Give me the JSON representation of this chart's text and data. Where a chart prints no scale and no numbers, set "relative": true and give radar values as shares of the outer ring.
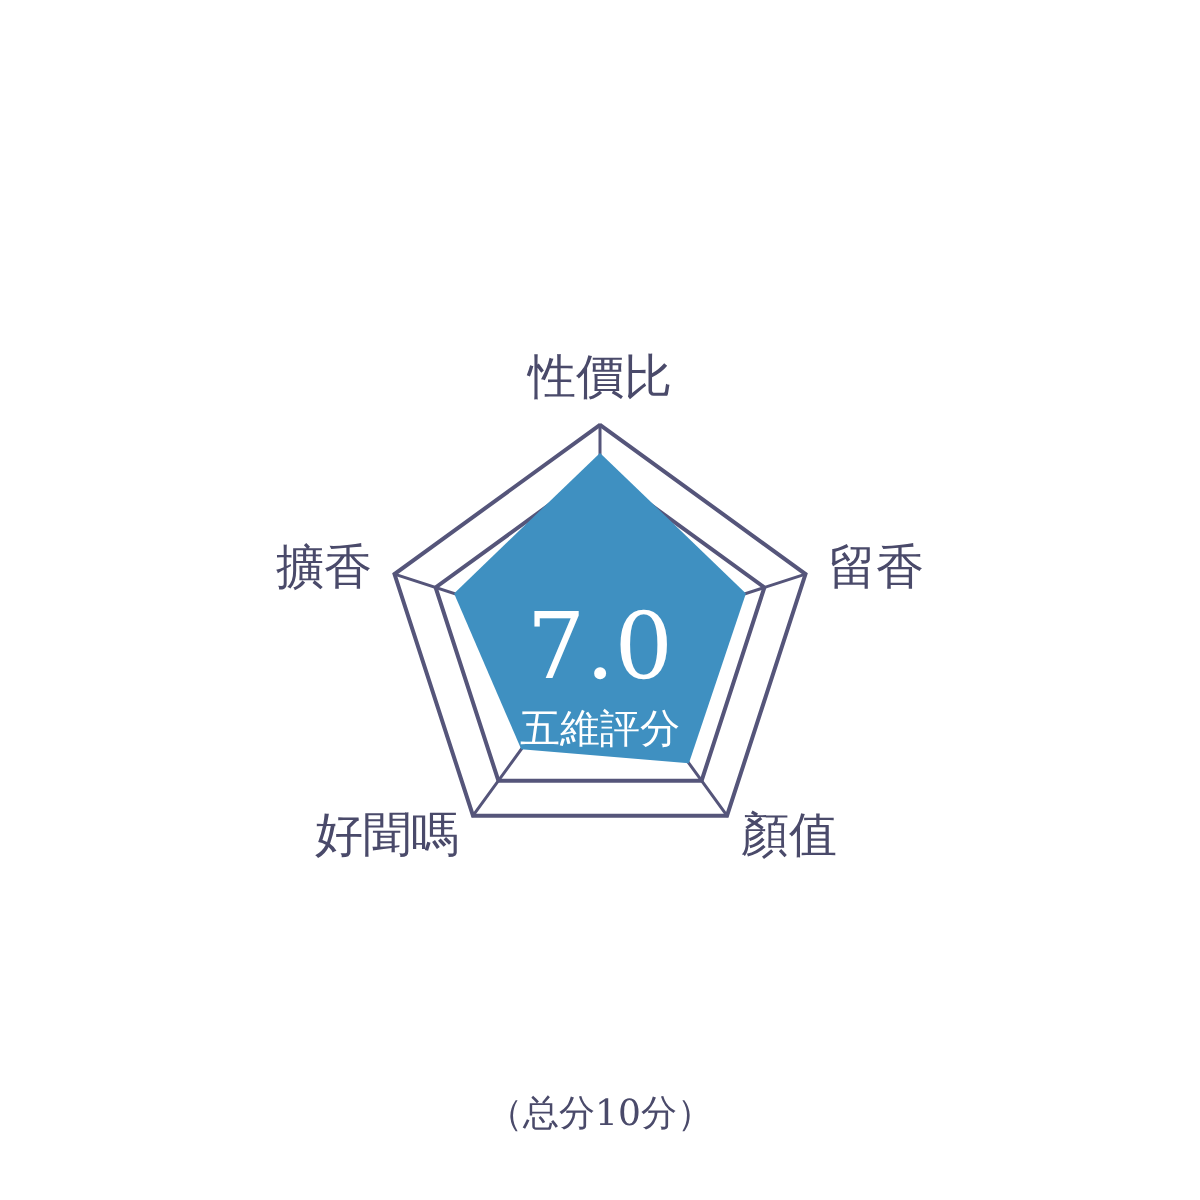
{
  "chart_data": {
    "type": "radar",
    "relative": true,
    "categories": [
      "性價比",
      "留香",
      "顏值",
      "好聞嗎",
      "擴香"
    ],
    "series": [
      {
        "color": "#3f90c1",
        "values": [
          0.87,
          0.71,
          0.7,
          0.62,
          0.71
        ]
      }
    ],
    "annotations": [
      "7.0",
      "五維評分",
      "（总分10分）"
    ]
  }
}
